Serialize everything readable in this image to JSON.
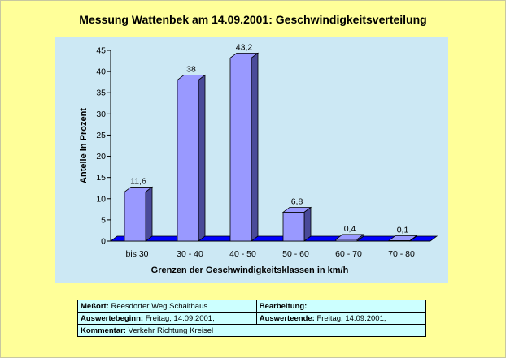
{
  "chart_data": {
    "type": "bar",
    "title": "Messung Wattenbek am 14.09.2001: Geschwindigkeitsverteilung",
    "xlabel": "Grenzen der Geschwindigkeitsklassen in km/h",
    "ylabel": "Anteile in Prozent",
    "categories": [
      "bis 30",
      "30 - 40",
      "40 - 50",
      "50 - 60",
      "60 - 70",
      "70 - 80"
    ],
    "values": [
      11.6,
      38,
      43.2,
      6.8,
      0.4,
      0.1
    ],
    "value_labels": [
      "11,6",
      "38",
      "43,2",
      "6,8",
      "0,4",
      "0,1"
    ],
    "ylim": [
      0,
      45
    ],
    "yticks": [
      0,
      5,
      10,
      15,
      20,
      25,
      30,
      35,
      40,
      45
    ],
    "grid": false,
    "style": "3d-bar",
    "colors": {
      "bar_face": "#9999ff",
      "bar_side": "#4a4a99",
      "floor": "#0000ff",
      "plot_bg": "#cce8f4"
    }
  },
  "info": {
    "messort_label": "Meßort:",
    "messort_value": "Reesdorfer Weg Schalthaus",
    "bearbeitung_label": "Bearbeitung:",
    "bearbeitung_value": "",
    "auswertebeginn_label": "Auswertebeginn:",
    "auswertebeginn_value": "Freitag, 14.09.2001,",
    "auswerteende_label": "Auswerteende:",
    "auswerteende_value": "Freitag, 14.09.2001,",
    "kommentar_label": "Kommentar:",
    "kommentar_value": "Verkehr Richtung Kreisel"
  }
}
